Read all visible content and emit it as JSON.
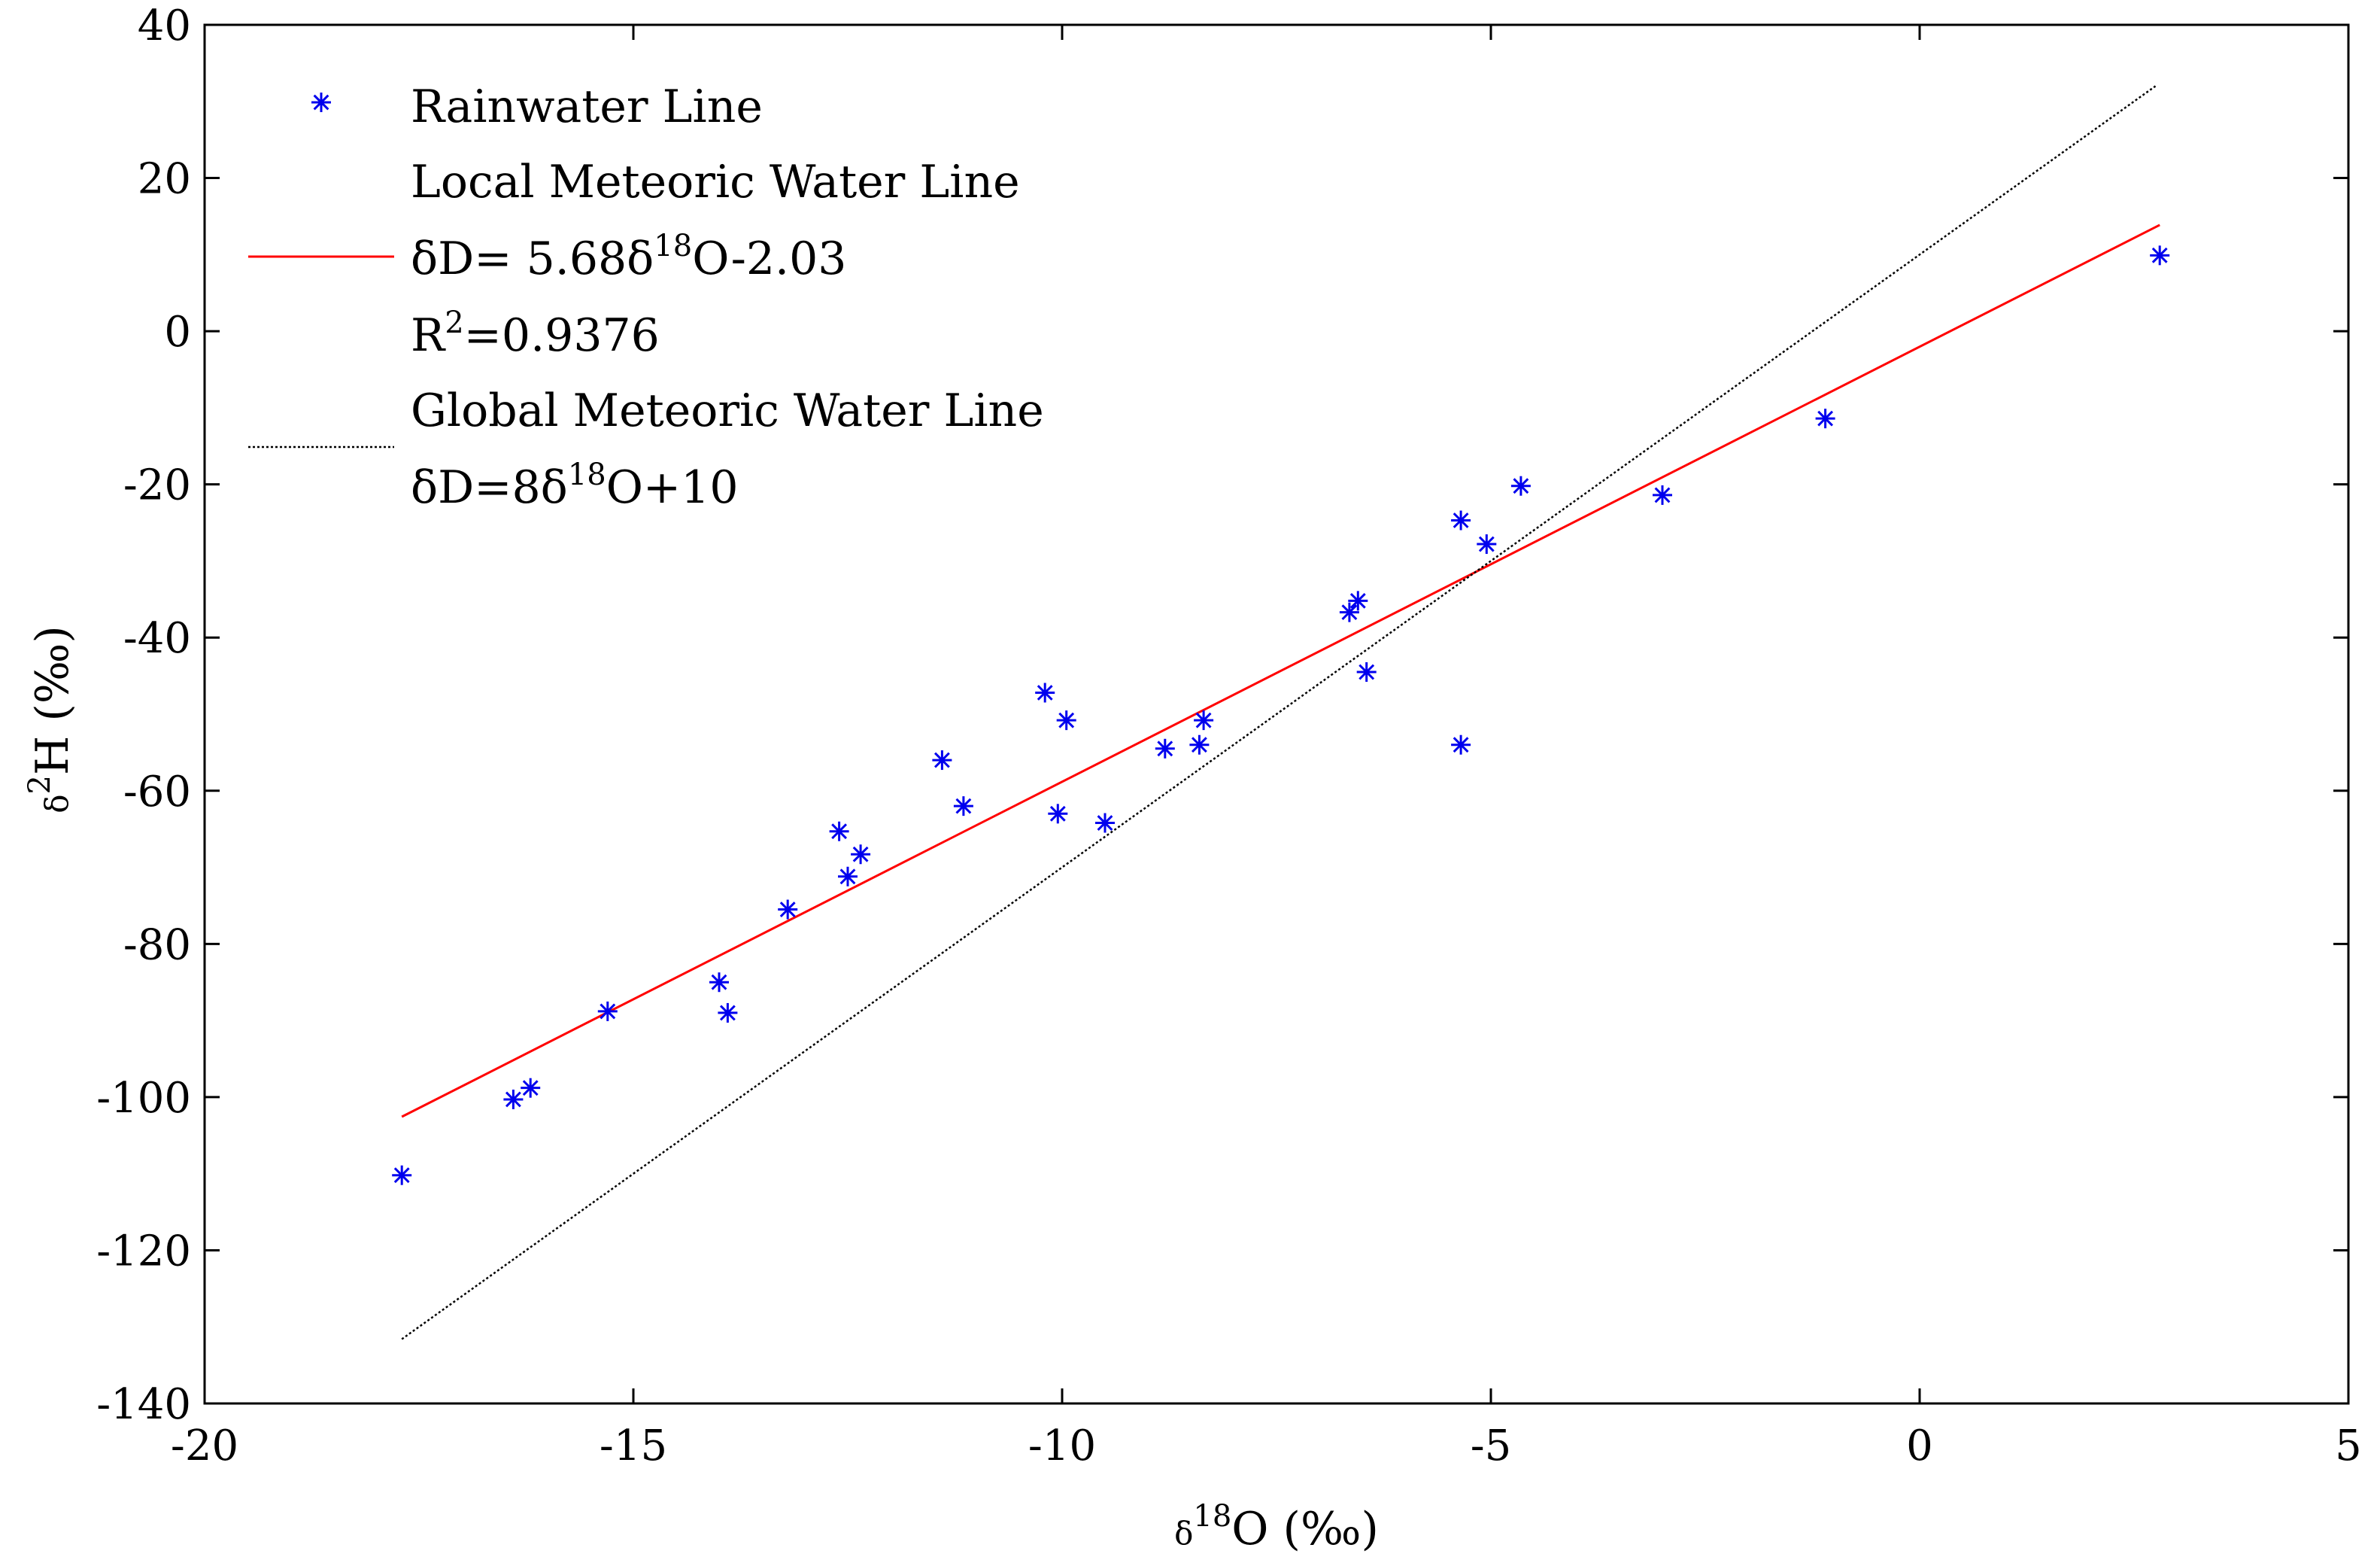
{
  "chart_data": {
    "type": "scatter",
    "xlim": [
      -20,
      5
    ],
    "ylim": [
      -140,
      40
    ],
    "x_ticks": [
      -20,
      -15,
      -10,
      -5,
      0,
      5
    ],
    "y_ticks": [
      40,
      20,
      0,
      -20,
      -40,
      -60,
      -80,
      -100,
      -120,
      -140
    ],
    "x_tick_labels": [
      "-20",
      "-15",
      "-10",
      "-5",
      "0",
      "5"
    ],
    "y_tick_labels": [
      "40",
      "20",
      "0",
      "-20",
      "-40",
      "-60",
      "-80",
      "-100",
      "-120",
      "-140"
    ],
    "xlabel": {
      "prefix": "δ",
      "sup": "18",
      "rest": "O (‰)"
    },
    "ylabel": {
      "prefix": "δ",
      "sup": "2",
      "rest": "H (‰)"
    },
    "grid": false,
    "legend_position": "top-left",
    "series": [
      {
        "name": "Rainwater Line",
        "kind": "scatter",
        "marker": "asterisk",
        "color": "#0000ee",
        "points": [
          [
            -17.7,
            -110.2
          ],
          [
            -16.4,
            -100.3
          ],
          [
            -16.2,
            -98.8
          ],
          [
            -15.3,
            -88.8
          ],
          [
            -14.0,
            -85.0
          ],
          [
            -13.9,
            -89.0
          ],
          [
            -13.2,
            -75.5
          ],
          [
            -12.6,
            -65.3
          ],
          [
            -12.5,
            -71.2
          ],
          [
            -12.35,
            -68.3
          ],
          [
            -11.4,
            -56.0
          ],
          [
            -11.15,
            -62.0
          ],
          [
            -10.2,
            -47.2
          ],
          [
            -10.05,
            -63.0
          ],
          [
            -9.95,
            -50.8
          ],
          [
            -9.5,
            -64.2
          ],
          [
            -8.8,
            -54.5
          ],
          [
            -8.4,
            -54.0
          ],
          [
            -8.35,
            -50.8
          ],
          [
            -6.65,
            -36.7
          ],
          [
            -6.55,
            -35.2
          ],
          [
            -6.45,
            -44.5
          ],
          [
            -5.35,
            -24.7
          ],
          [
            -5.35,
            -54.0
          ],
          [
            -5.05,
            -27.8
          ],
          [
            -4.65,
            -20.2
          ],
          [
            -3.0,
            -21.4
          ],
          [
            -1.1,
            -11.4
          ],
          [
            2.8,
            9.9
          ]
        ]
      },
      {
        "name": "Local Meteoric Water Line",
        "kind": "line",
        "style": "solid",
        "color": "#ff0000",
        "equation": {
          "prefix": "δD= 5.68δ",
          "sup": "18",
          "rest": "O-2.03"
        },
        "r2": {
          "prefix": "R",
          "sup": "2",
          "rest": "=0.9376"
        },
        "slope": 5.68,
        "intercept": -2.03,
        "x_range": [
          -17.7,
          2.8
        ]
      },
      {
        "name": "Global Meteoric Water Line",
        "kind": "line",
        "style": "dotted",
        "color": "#000000",
        "equation": {
          "prefix": "δD=8δ",
          "sup": "18",
          "rest": "O+10"
        },
        "slope": 8,
        "intercept": 10,
        "x_range": [
          -17.7,
          2.75
        ]
      }
    ]
  }
}
